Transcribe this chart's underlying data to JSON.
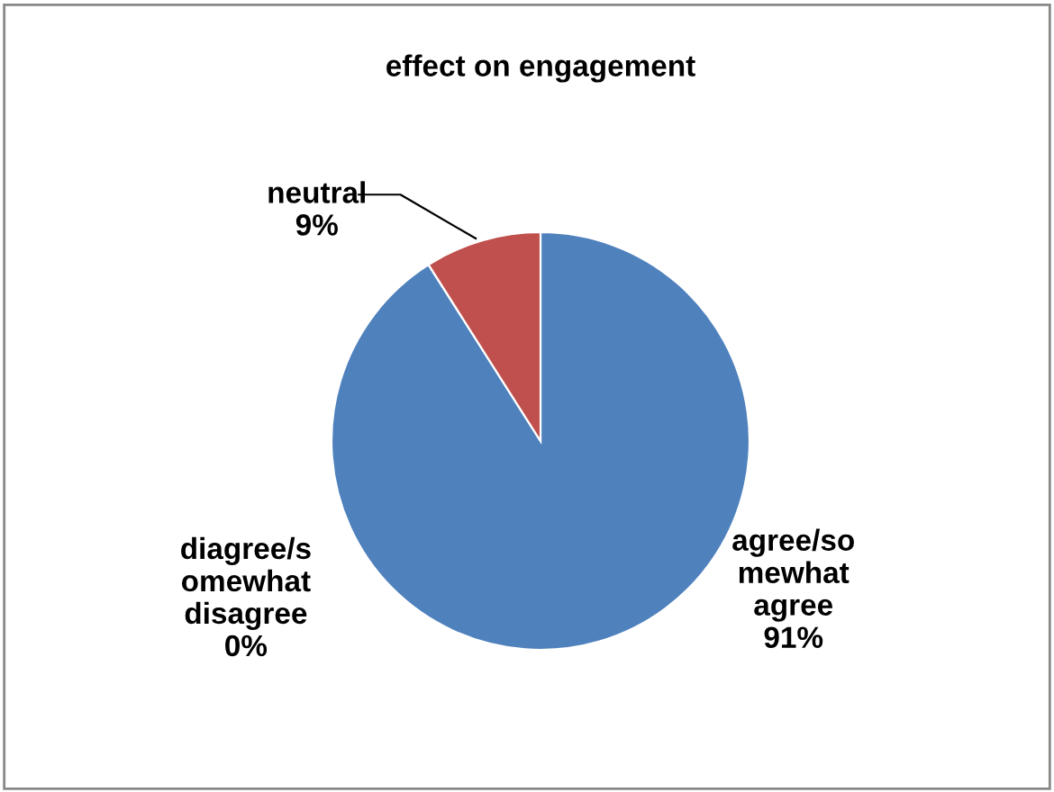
{
  "chart_data": {
    "type": "pie",
    "title": "effect on engagement",
    "categories": [
      "agree/so\nmewhat\nagree",
      "diagree/s\nomewhat\ndisagree",
      "neutral"
    ],
    "values": [
      91,
      0,
      9
    ],
    "value_labels": [
      "91%",
      "0%",
      "9%"
    ],
    "colors": [
      "#4f81bd",
      "#9bbb59",
      "#c0504d"
    ],
    "legend": false
  }
}
